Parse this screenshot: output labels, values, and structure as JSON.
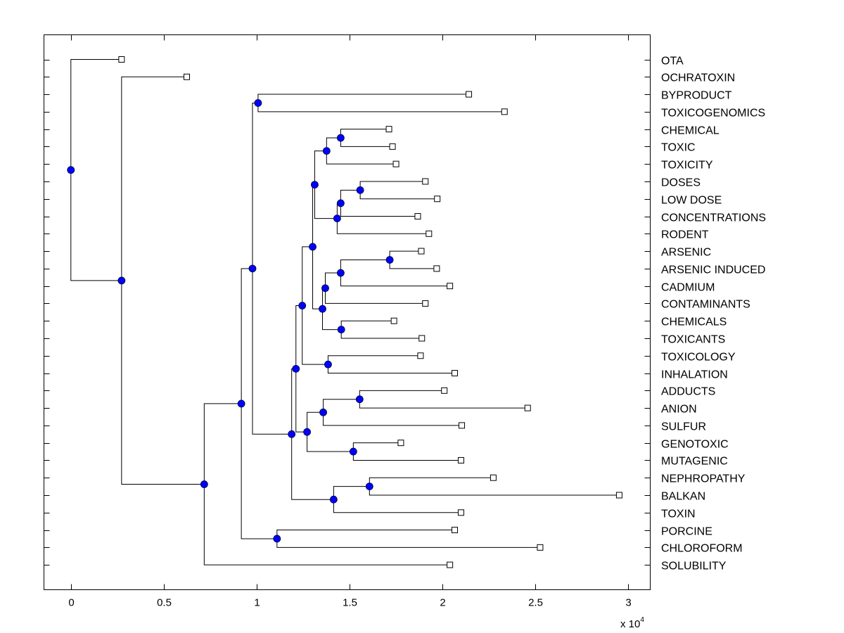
{
  "chart_data": {
    "type": "dendrogram",
    "title": "",
    "xlabel": "",
    "ylabel": "",
    "x_multiplier_label": "x 10",
    "x_multiplier_exponent": "4",
    "xlim": [
      -0.145,
      3.12
    ],
    "x_ticks": [
      0,
      0.5,
      1,
      1.5,
      2,
      2.5,
      3
    ],
    "x_tick_labels": [
      "0",
      "0.5",
      "1",
      "1.5",
      "2",
      "2.5",
      "3"
    ],
    "grid": false,
    "colors": {
      "internal_node": "#0000ff",
      "leaf_marker": "#ffffff",
      "line": "#000000"
    },
    "leaves": [
      {
        "label": "OTA",
        "value": 0.273
      },
      {
        "label": "OCHRATOXIN",
        "value": 0.624
      },
      {
        "label": "BYPRODUCT",
        "value": 2.143
      },
      {
        "label": "TOXICOGENOMICS",
        "value": 2.335
      },
      {
        "label": "CHEMICAL",
        "value": 1.713
      },
      {
        "label": "TOXIC",
        "value": 1.732
      },
      {
        "label": "TOXICITY",
        "value": 1.751
      },
      {
        "label": "DOSES",
        "value": 1.909
      },
      {
        "label": "LOW DOSE",
        "value": 1.973
      },
      {
        "label": "CONCENTRATIONS",
        "value": 1.868
      },
      {
        "label": "RODENT",
        "value": 1.928
      },
      {
        "label": "ARSENIC",
        "value": 1.887
      },
      {
        "label": "ARSENIC INDUCED",
        "value": 1.97
      },
      {
        "label": "CADMIUM",
        "value": 2.041
      },
      {
        "label": "CONTAMINANTS",
        "value": 1.909
      },
      {
        "label": "CHEMICALS",
        "value": 1.74
      },
      {
        "label": "TOXICANTS",
        "value": 1.89
      },
      {
        "label": "TOXICOLOGY",
        "value": 1.883
      },
      {
        "label": "INHALATION",
        "value": 2.067
      },
      {
        "label": "ADDUCTS",
        "value": 2.011
      },
      {
        "label": "ANION",
        "value": 2.46
      },
      {
        "label": "SULFUR",
        "value": 2.105
      },
      {
        "label": "GENOTOXIC",
        "value": 1.777
      },
      {
        "label": "MUTAGENIC",
        "value": 2.101
      },
      {
        "label": "NEPHROPATHY",
        "value": 2.275
      },
      {
        "label": "BALKAN",
        "value": 2.953
      },
      {
        "label": "TOXIN",
        "value": 2.101
      },
      {
        "label": "PORCINE",
        "value": 2.067
      },
      {
        "label": "CHLOROFORM",
        "value": 2.527
      },
      {
        "label": "SOLUBILITY",
        "value": 2.041
      }
    ],
    "tree": {
      "value": 0.0,
      "children": [
        {
          "leaf": 0
        },
        {
          "value": 0.273,
          "children": [
            {
              "leaf": 1
            },
            {
              "value": 0.718,
              "children": [
                {
                  "value": 0.918,
                  "children": [
                    {
                      "value": 0.978,
                      "children": [
                        {
                          "value": 1.008,
                          "children": [
                            {
                              "leaf": 2
                            },
                            {
                              "leaf": 3
                            }
                          ]
                        },
                        {
                          "value": 1.189,
                          "children": [
                            {
                              "value": 1.212,
                              "children": [
                                {
                                  "value": 1.246,
                                  "children": [
                                    {
                                      "value": 1.302,
                                      "children": [
                                        {
                                          "value": 1.313,
                                          "children": [
                                            {
                                              "value": 1.377,
                                              "children": [
                                                {
                                                  "value": 1.453,
                                                  "children": [
                                                    {
                                                      "leaf": 4
                                                    },
                                                    {
                                                      "leaf": 5
                                                    }
                                                  ]
                                                },
                                                {
                                                  "leaf": 6
                                                }
                                              ]
                                            },
                                            {
                                              "value": 1.434,
                                              "children": [
                                                {
                                                  "value": 1.453,
                                                  "children": [
                                                    {
                                                      "value": 1.558,
                                                      "children": [
                                                        {
                                                          "leaf": 7
                                                        },
                                                        {
                                                          "leaf": 8
                                                        }
                                                      ]
                                                    },
                                                    {
                                                      "leaf": 9
                                                    }
                                                  ]
                                                },
                                                {
                                                  "leaf": 10
                                                }
                                              ]
                                            }
                                          ]
                                        },
                                        {
                                          "value": 1.355,
                                          "children": [
                                            {
                                              "value": 1.37,
                                              "children": [
                                                {
                                                  "value": 1.453,
                                                  "children": [
                                                    {
                                                      "value": 1.717,
                                                      "children": [
                                                        {
                                                          "leaf": 11
                                                        },
                                                        {
                                                          "leaf": 12
                                                        }
                                                      ]
                                                    },
                                                    {
                                                      "leaf": 13
                                                    }
                                                  ]
                                                },
                                                {
                                                  "leaf": 14
                                                }
                                              ]
                                            },
                                            {
                                              "value": 1.456,
                                              "children": [
                                                {
                                                  "leaf": 15
                                                },
                                                {
                                                  "leaf": 16
                                                }
                                              ]
                                            }
                                          ]
                                        }
                                      ]
                                    },
                                    {
                                      "value": 1.385,
                                      "children": [
                                        {
                                          "leaf": 17
                                        },
                                        {
                                          "leaf": 18
                                        }
                                      ]
                                    }
                                  ]
                                },
                                {
                                  "value": 1.272,
                                  "children": [
                                    {
                                      "value": 1.359,
                                      "children": [
                                        {
                                          "value": 1.555,
                                          "children": [
                                            {
                                              "leaf": 19
                                            },
                                            {
                                              "leaf": 20
                                            }
                                          ]
                                        },
                                        {
                                          "leaf": 21
                                        }
                                      ]
                                    },
                                    {
                                      "value": 1.521,
                                      "children": [
                                        {
                                          "leaf": 22
                                        },
                                        {
                                          "leaf": 23
                                        }
                                      ]
                                    }
                                  ]
                                }
                              ]
                            },
                            {
                              "value": 1.415,
                              "children": [
                                {
                                  "value": 1.608,
                                  "children": [
                                    {
                                      "leaf": 24
                                    },
                                    {
                                      "leaf": 25
                                    }
                                  ]
                                },
                                {
                                  "leaf": 26
                                }
                              ]
                            }
                          ]
                        }
                      ]
                    },
                    {
                      "value": 1.11,
                      "children": [
                        {
                          "leaf": 27
                        },
                        {
                          "leaf": 28
                        }
                      ]
                    }
                  ]
                },
                {
                  "leaf": 29
                }
              ]
            }
          ]
        }
      ]
    }
  }
}
